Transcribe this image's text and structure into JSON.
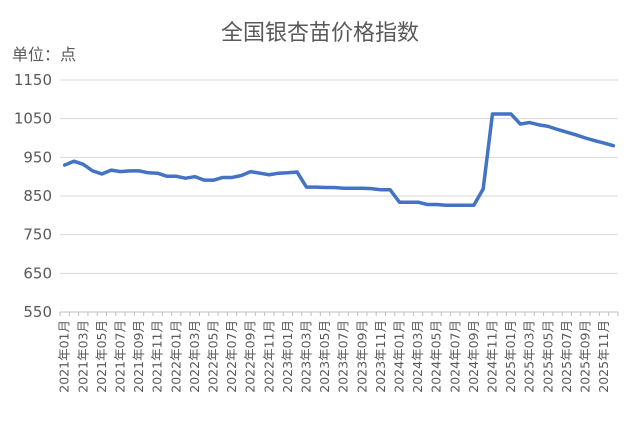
{
  "chart_data": {
    "type": "line",
    "title": "全国银杏苗价格指数",
    "unit_label": "单位：点",
    "xlabel": "",
    "ylabel": "",
    "ylim": [
      550,
      1150
    ],
    "yticks": [
      550,
      650,
      750,
      850,
      950,
      1050,
      1150
    ],
    "grid": true,
    "legend": "none",
    "line_color": "#4472C4",
    "grid_color": "#d9d9d9",
    "categories": [
      "2021年01月",
      "2021年02月",
      "2021年03月",
      "2021年04月",
      "2021年05月",
      "2021年06月",
      "2021年07月",
      "2021年08月",
      "2021年09月",
      "2021年10月",
      "2021年11月",
      "2021年12月",
      "2022年01月",
      "2022年02月",
      "2022年03月",
      "2022年04月",
      "2022年05月",
      "2022年06月",
      "2022年07月",
      "2022年08月",
      "2022年09月",
      "2022年10月",
      "2022年11月",
      "2022年12月",
      "2023年01月",
      "2023年02月",
      "2023年03月",
      "2023年04月",
      "2023年05月",
      "2023年06月",
      "2023年07月",
      "2023年08月",
      "2023年09月",
      "2023年10月",
      "2023年11月",
      "2023年12月",
      "2024年01月",
      "2024年02月",
      "2024年03月",
      "2024年04月",
      "2024年05月",
      "2024年06月",
      "2024年07月",
      "2024年08月",
      "2024年09月",
      "2024年10月",
      "2024年11月",
      "2024年12月",
      "2025年01月",
      "2025年02月",
      "2025年03月",
      "2025年04月",
      "2025年05月",
      "2025年06月",
      "2025年07月",
      "2025年08月",
      "2025年09月",
      "2025年10月",
      "2025年11月",
      "2025年12月"
    ],
    "xtick_labels": [
      "2021年01月",
      "2021年03月",
      "2021年05月",
      "2021年07月",
      "2021年09月",
      "2021年11月",
      "2022年01月",
      "2022年03月",
      "2022年05月",
      "2022年07月",
      "2022年09月",
      "2022年11月",
      "2023年01月",
      "2023年03月",
      "2023年05月",
      "2023年07月",
      "2023年09月",
      "2023年11月",
      "2024年01月",
      "2024年03月",
      "2024年05月",
      "2024年07月",
      "2024年09月",
      "2024年11月",
      "2025年01月",
      "2025年03月",
      "2025年05月",
      "2025年07月",
      "2025年09月",
      "2025年11月"
    ],
    "series": [
      {
        "values": [
          930,
          940,
          932,
          915,
          907,
          917,
          913,
          915,
          915,
          910,
          909,
          901,
          901,
          896,
          900,
          891,
          891,
          898,
          898,
          903,
          913,
          909,
          905,
          909,
          910,
          912,
          873,
          873,
          872,
          872,
          870,
          870,
          870,
          869,
          866,
          866,
          834,
          834,
          834,
          828,
          828,
          826,
          826,
          826,
          826,
          868,
          1062,
          1062,
          1062,
          1036,
          1040,
          1034,
          1030,
          1022,
          1015,
          1008,
          1000,
          993,
          987,
          980
        ]
      }
    ]
  }
}
